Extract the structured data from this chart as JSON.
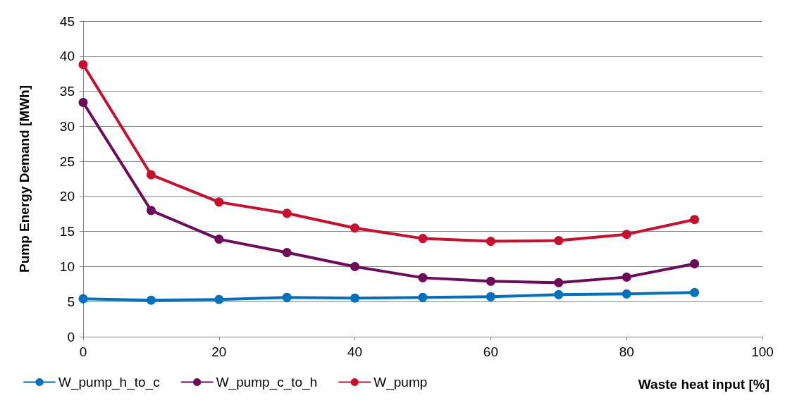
{
  "chart_data": {
    "type": "line",
    "xlabel": "Waste heat input [%]",
    "ylabel": "Pump Energy Demand [MWh]",
    "x": [
      0,
      10,
      20,
      30,
      40,
      50,
      60,
      70,
      80,
      90
    ],
    "series": [
      {
        "name": "W_pump_h_to_c",
        "color": "#0070c0",
        "values": [
          5.4,
          5.2,
          5.3,
          5.6,
          5.5,
          5.6,
          5.7,
          6.0,
          6.1,
          6.3
        ]
      },
      {
        "name": "W_pump_c_to_h",
        "color": "#6e0a5a",
        "values": [
          33.4,
          18.0,
          13.9,
          12.0,
          10.0,
          8.4,
          7.9,
          7.7,
          8.5,
          10.4
        ]
      },
      {
        "name": "W_pump",
        "color": "#c8102e",
        "values": [
          38.8,
          23.1,
          19.2,
          17.6,
          15.5,
          14.0,
          13.6,
          13.7,
          14.6,
          16.7
        ]
      }
    ],
    "xlim": [
      0,
      100
    ],
    "xticks": [
      0,
      20,
      40,
      60,
      80,
      100
    ],
    "ylim": [
      0,
      45
    ],
    "yticks": [
      0,
      5,
      10,
      15,
      20,
      25,
      30,
      35,
      40,
      45
    ],
    "grid": "y",
    "legend": "bottom left",
    "marker": "circle",
    "line_style": "solid"
  }
}
